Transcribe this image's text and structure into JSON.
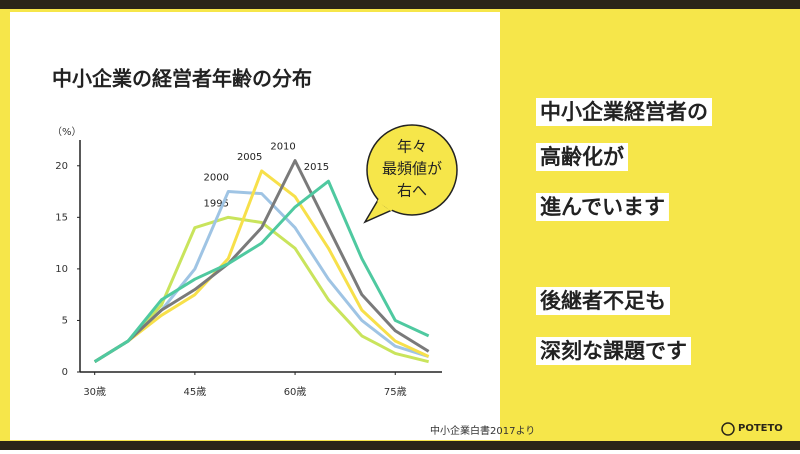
{
  "chart_data": {
    "type": "line",
    "title": "中小企業の経営者年齢の分布",
    "y_unit": "（%）",
    "x": [
      30,
      35,
      40,
      45,
      50,
      55,
      60,
      65,
      70,
      75,
      80
    ],
    "series": [
      {
        "name": "1995",
        "color": "#c9e45c",
        "values": [
          1,
          3,
          6.5,
          14,
          15,
          14.5,
          12,
          7,
          3.5,
          1.8,
          1
        ]
      },
      {
        "name": "2000",
        "color": "#9fc4e4",
        "values": [
          1,
          3,
          6,
          10,
          17.5,
          17.3,
          14,
          9,
          5,
          2.5,
          1.5
        ]
      },
      {
        "name": "2005",
        "color": "#f7e04a",
        "values": [
          1,
          3,
          5.5,
          7.5,
          11,
          19.5,
          17,
          12,
          6,
          3,
          1.5
        ]
      },
      {
        "name": "2010",
        "color": "#7a7a7a",
        "values": [
          1,
          3,
          6,
          8,
          10.5,
          14,
          20.5,
          14,
          7.5,
          4,
          2
        ]
      },
      {
        "name": "2015",
        "color": "#4fc9a0",
        "values": [
          1,
          3,
          7,
          9,
          10.5,
          12.5,
          16,
          18.5,
          11,
          5,
          3.5
        ]
      }
    ],
    "xlim": [
      27.8,
      82
    ],
    "ylim": [
      0,
      22.5
    ],
    "xticks": [
      {
        "value": 30,
        "label": "30歳"
      },
      {
        "value": 45,
        "label": "45歳"
      },
      {
        "value": 60,
        "label": "60歳"
      },
      {
        "value": 75,
        "label": "75歳"
      }
    ],
    "yticks": [
      0,
      5,
      10,
      15,
      20
    ],
    "annotation": [
      "年々",
      "最頻値が",
      "右へ"
    ],
    "source": "中小企業白書2017より"
  },
  "message": [
    "中小企業経営者の",
    "高齢化が",
    "進んでいます",
    "後継者不足も",
    "深刻な課題です"
  ],
  "logo": "POTETO"
}
